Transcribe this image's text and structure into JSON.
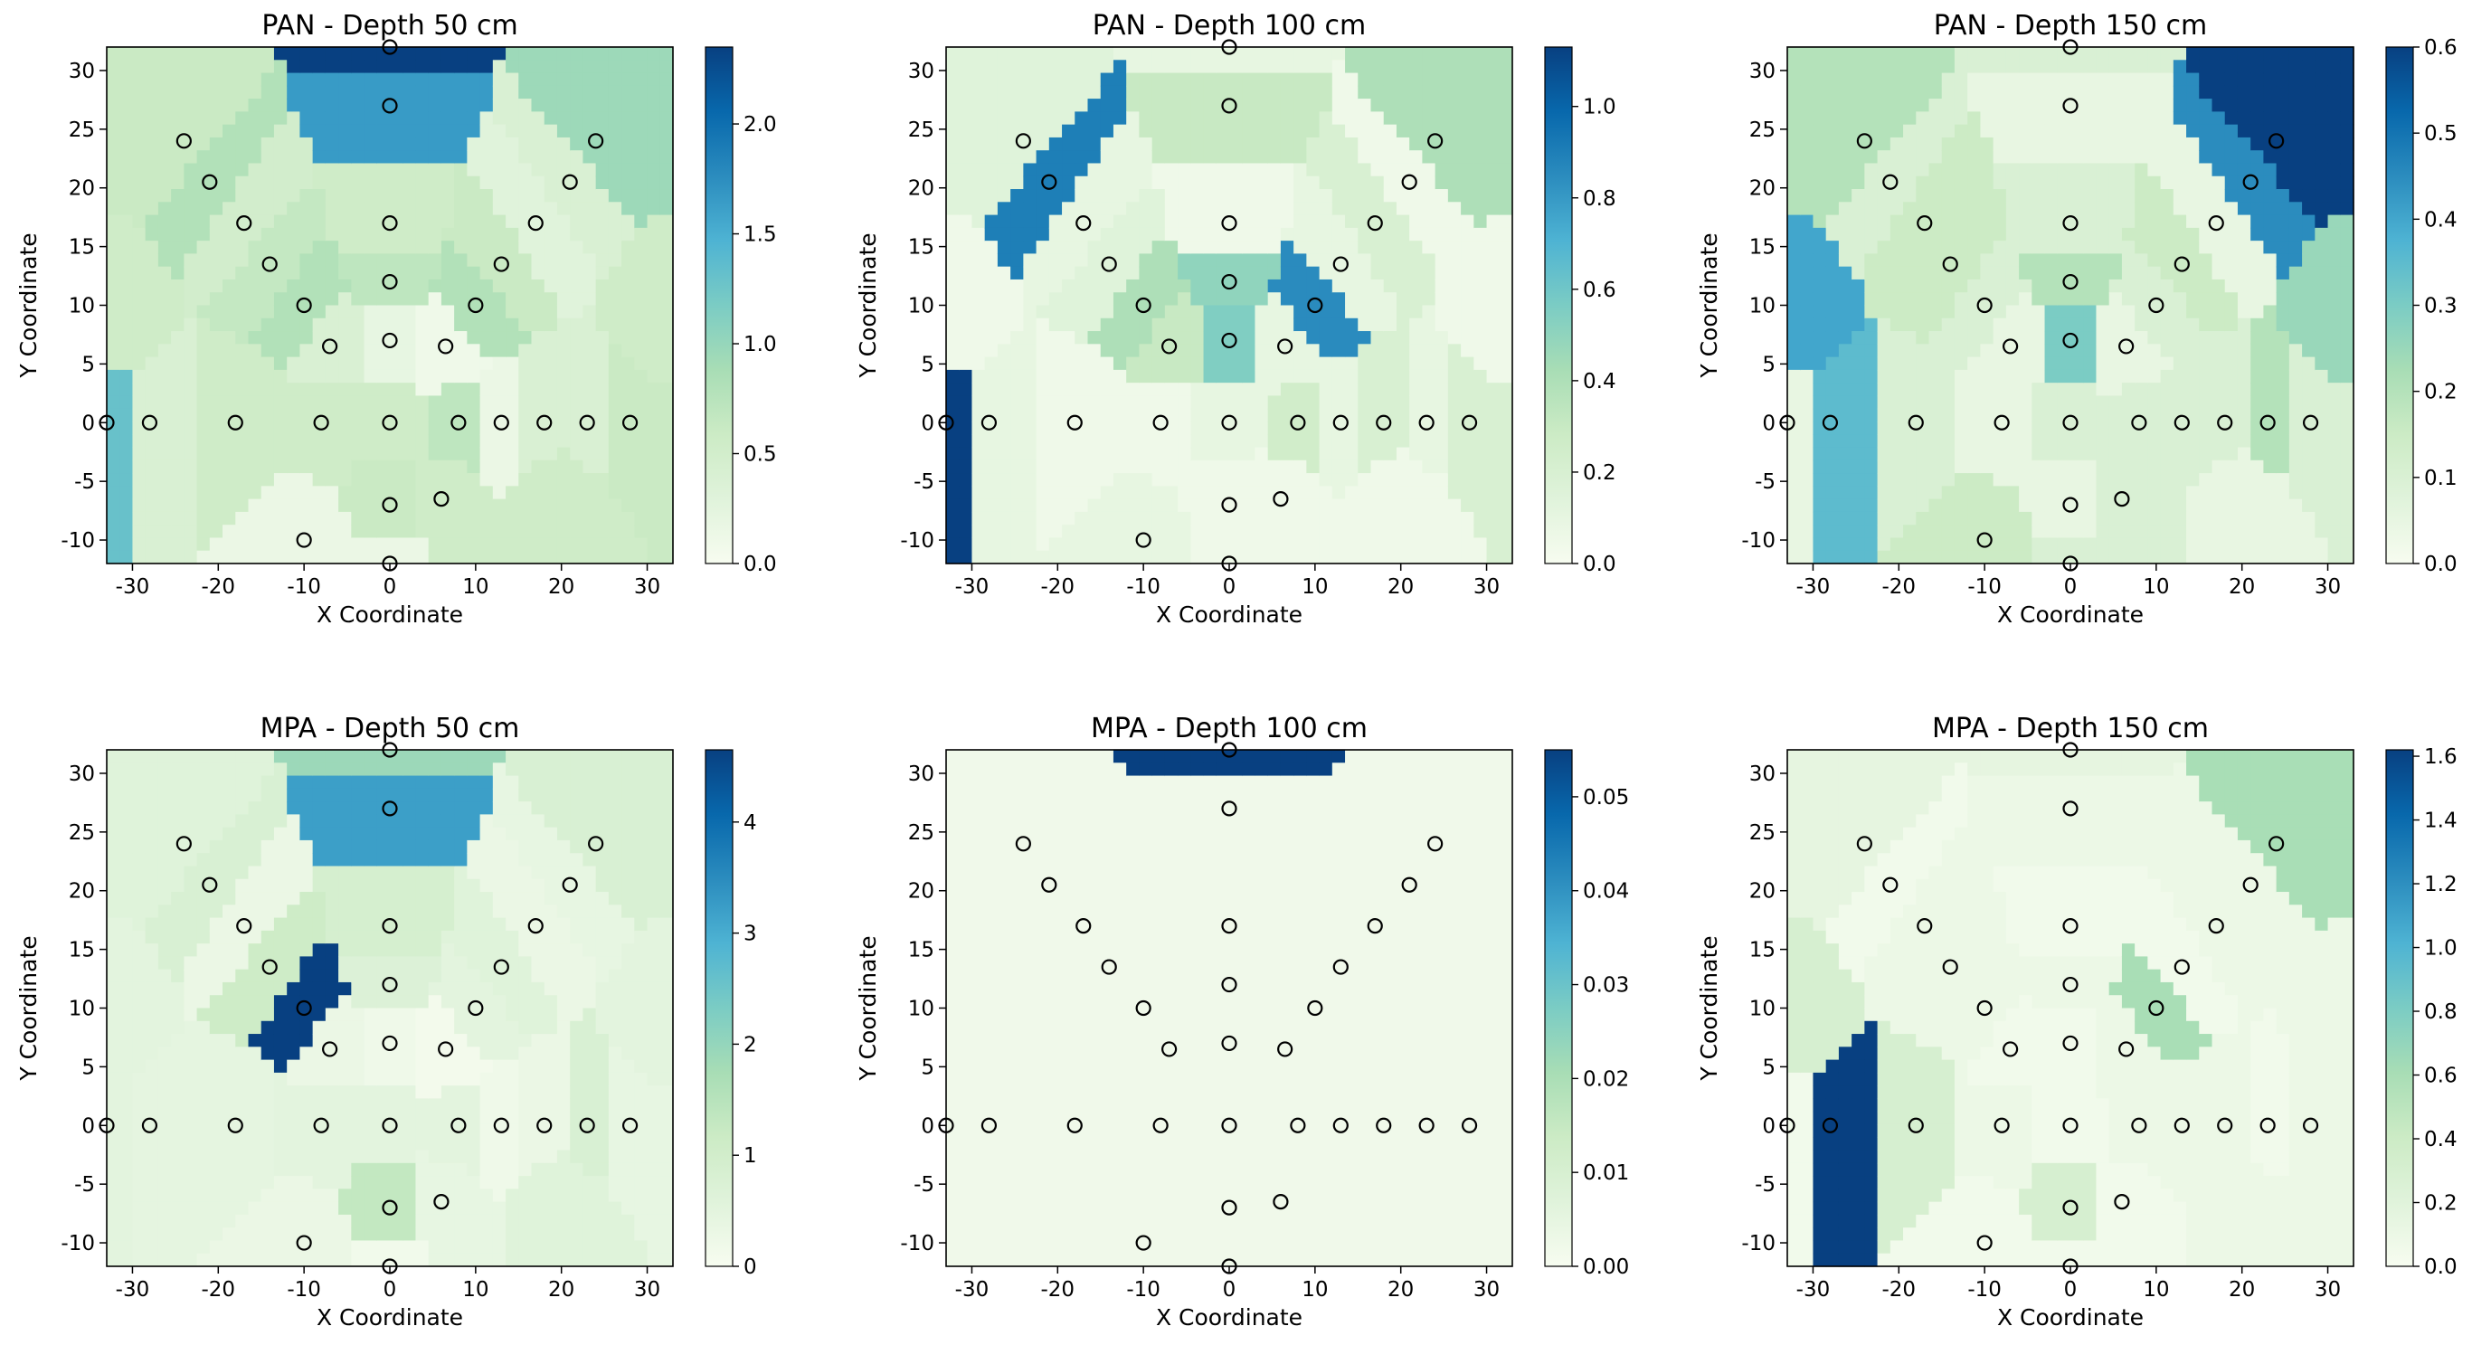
{
  "figure": {
    "colormap": [
      "#f7fcf0",
      "#e0f3db",
      "#ccebc5",
      "#a8ddb5",
      "#7bccc4",
      "#4eb3d3",
      "#2b8cbe",
      "#0868ac",
      "#084081"
    ]
  },
  "chart_data": [
    {
      "type": "heatmap",
      "title": "PAN - Depth 50 cm",
      "xlabel": "X Coordinate",
      "ylabel": "Y Coordinate",
      "xlim": [
        -33,
        33
      ],
      "ylim": [
        -12,
        32
      ],
      "xticks": [
        "-30",
        "-20",
        "-10",
        "0",
        "10",
        "20",
        "30"
      ],
      "yticks": [
        "-10",
        "-5",
        "0",
        "5",
        "10",
        "15",
        "20",
        "25",
        "30"
      ],
      "colorbar": {
        "min": 0,
        "max": 2.35,
        "ticks": [
          "0.0",
          "0.5",
          "1.0",
          "1.5",
          "2.0"
        ]
      },
      "values": [
        1.3,
        0.4,
        0.55,
        0.55,
        0.55,
        0.7,
        0.15,
        0.4,
        0.4,
        0.6,
        2.35,
        1.65,
        0.6,
        0.95,
        0.8,
        0.4,
        0.55,
        0.5,
        0.3,
        0.65,
        0.6,
        0.7,
        0.8,
        0.8,
        0.4,
        0.1,
        0.2,
        0.15,
        0.15,
        0.6,
        0.55,
        0.55,
        0.55,
        0.55
      ]
    },
    {
      "type": "heatmap",
      "title": "PAN - Depth 100 cm",
      "xlabel": "X Coordinate",
      "ylabel": "Y Coordinate",
      "xlim": [
        -33,
        33
      ],
      "ylim": [
        -12,
        32
      ],
      "xticks": [
        "-30",
        "-20",
        "-10",
        "0",
        "10",
        "20",
        "30"
      ],
      "yticks": [
        "-10",
        "-5",
        "0",
        "5",
        "10",
        "15",
        "20",
        "25",
        "30"
      ],
      "colorbar": {
        "min": 0,
        "max": 1.13,
        "ticks": [
          "0.0",
          "0.2",
          "0.4",
          "0.6",
          "0.8",
          "1.0"
        ]
      },
      "values": [
        1.13,
        0.1,
        0.05,
        0.05,
        0.1,
        0.25,
        0.1,
        0.2,
        0.1,
        0.2,
        0.1,
        0.3,
        0.15,
        0.4,
        0.9,
        0.05,
        0.05,
        0.1,
        0.2,
        0.15,
        0.1,
        0.5,
        0.4,
        0.85,
        0.3,
        0.1,
        0.55,
        0.1,
        0.05,
        0.05,
        0.05,
        0.05,
        0.05,
        0.05
      ]
    },
    {
      "type": "heatmap",
      "title": "PAN - Depth 150 cm",
      "xlabel": "X Coordinate",
      "ylabel": "Y Coordinate",
      "xlim": [
        -33,
        33
      ],
      "ylim": [
        -12,
        32
      ],
      "xticks": [
        "-30",
        "-20",
        "-10",
        "0",
        "10",
        "20",
        "30"
      ],
      "yticks": [
        "-10",
        "-5",
        "0",
        "5",
        "10",
        "15",
        "20",
        "25",
        "30"
      ],
      "colorbar": {
        "min": 0,
        "max": 0.6,
        "ticks": [
          "0.0",
          "0.1",
          "0.2",
          "0.3",
          "0.4",
          "0.5",
          "0.6"
        ]
      },
      "values": [
        0.05,
        0.35,
        0.1,
        0.05,
        0.1,
        0.1,
        0.1,
        0.1,
        0.2,
        0.1,
        0.1,
        0.05,
        0.2,
        0.6,
        0.1,
        0.45,
        0.1,
        0.15,
        0.05,
        0.15,
        0.15,
        0.2,
        0.1,
        0.1,
        0.05,
        0.05,
        0.3,
        0.15,
        0.1,
        0.05,
        0.1,
        0.4,
        0.25,
        0.05
      ]
    },
    {
      "type": "heatmap",
      "title": "MPA - Depth 50 cm",
      "xlabel": "X Coordinate",
      "ylabel": "Y Coordinate",
      "xlim": [
        -33,
        33
      ],
      "ylim": [
        -12,
        32
      ],
      "xticks": [
        "-30",
        "-20",
        "-10",
        "0",
        "10",
        "20",
        "30"
      ],
      "yticks": [
        "-10",
        "-5",
        "0",
        "5",
        "10",
        "15",
        "20",
        "25",
        "30"
      ],
      "colorbar": {
        "min": 0,
        "max": 4.65,
        "ticks": [
          "0",
          "1",
          "2",
          "3",
          "4"
        ]
      },
      "values": [
        0.5,
        0.45,
        0.45,
        0.5,
        0.5,
        0.5,
        0.2,
        0.3,
        0.8,
        0.4,
        1.9,
        3.2,
        0.6,
        0.8,
        0.8,
        0.4,
        0.9,
        0.3,
        0.3,
        1.1,
        0.6,
        0.7,
        4.65,
        0.5,
        0.3,
        0.1,
        0.2,
        0.3,
        0.15,
        1.3,
        0.4,
        0.5,
        0.5,
        0.6
      ]
    },
    {
      "type": "heatmap",
      "title": "MPA - Depth 100 cm",
      "xlabel": "X Coordinate",
      "ylabel": "Y Coordinate",
      "xlim": [
        -33,
        33
      ],
      "ylim": [
        -12,
        32
      ],
      "xticks": [
        "-30",
        "-20",
        "-10",
        "0",
        "10",
        "20",
        "30"
      ],
      "yticks": [
        "-10",
        "-5",
        "0",
        "5",
        "10",
        "15",
        "20",
        "25",
        "30"
      ],
      "colorbar": {
        "min": 0,
        "max": 0.055,
        "ticks": [
          "0.00",
          "0.01",
          "0.02",
          "0.03",
          "0.04",
          "0.05"
        ]
      },
      "values": [
        0.002,
        0.002,
        0.002,
        0.002,
        0.002,
        0.002,
        0.002,
        0.002,
        0.002,
        0.002,
        0.055,
        0.002,
        0.002,
        0.002,
        0.002,
        0.002,
        0.002,
        0.002,
        0.002,
        0.002,
        0.002,
        0.002,
        0.002,
        0.002,
        0.002,
        0.002,
        0.002,
        0.002,
        0.002,
        0.002,
        0.002,
        0.002,
        0.002,
        0.002
      ]
    },
    {
      "type": "heatmap",
      "title": "MPA - Depth 150 cm",
      "xlabel": "X Coordinate",
      "ylabel": "Y Coordinate",
      "xlim": [
        -33,
        33
      ],
      "ylim": [
        -12,
        32
      ],
      "xticks": [
        "-30",
        "-20",
        "-10",
        "0",
        "10",
        "20",
        "30"
      ],
      "yticks": [
        "-10",
        "-5",
        "0",
        "5",
        "10",
        "15",
        "20",
        "25",
        "30"
      ],
      "colorbar": {
        "min": 0,
        "max": 1.62,
        "ticks": [
          "0.0",
          "0.2",
          "0.4",
          "0.6",
          "0.8",
          "1.0",
          "1.2",
          "1.4",
          "1.6"
        ]
      },
      "values": [
        0.05,
        1.62,
        0.3,
        0.1,
        0.05,
        0.1,
        0.1,
        0.1,
        0.05,
        0.1,
        0.15,
        0.1,
        0.15,
        0.6,
        0.05,
        0.1,
        0.05,
        0.1,
        0.1,
        0.1,
        0.05,
        0.1,
        0.1,
        0.6,
        0.05,
        0.1,
        0.05,
        0.05,
        0.05,
        0.3,
        0.05,
        0.3,
        0.1,
        0.1
      ]
    }
  ]
}
